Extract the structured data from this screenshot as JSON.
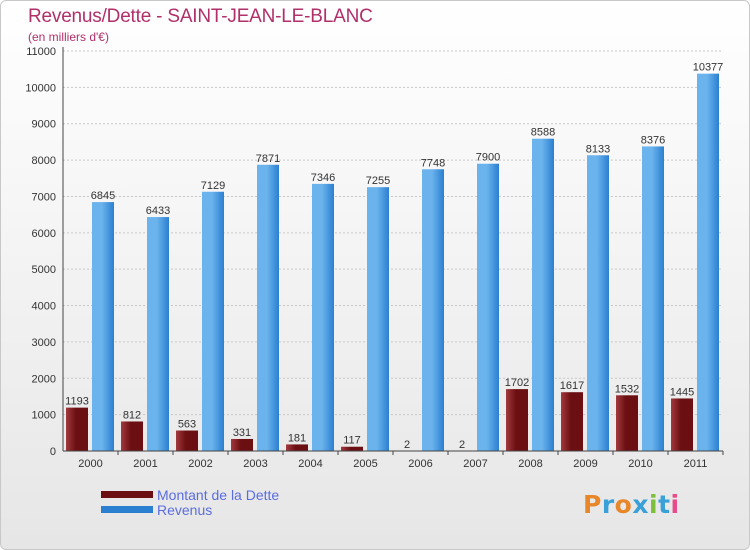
{
  "title": "Revenus/Dette - SAINT-JEAN-LE-BLANC",
  "subtitle": "(en milliers d'€)",
  "logo_text": "Proxiti",
  "colors": {
    "debt": "#6b0f12",
    "debt_light": "#a23a3e",
    "revenue": "#2b7fd1",
    "revenue_light": "#6ab3ec",
    "title": "#b0306a",
    "legend_text": "#5a6de0"
  },
  "legend": {
    "debt_label": "Montant de la Dette",
    "revenue_label": "Revenus"
  },
  "chart_data": {
    "type": "bar",
    "title": "Revenus/Dette - SAINT-JEAN-LE-BLANC",
    "ylabel": "(en milliers d'€)",
    "xlabel": "",
    "ylim": [
      0,
      11000
    ],
    "yticks": [
      0,
      1000,
      2000,
      3000,
      4000,
      5000,
      6000,
      7000,
      8000,
      9000,
      10000,
      11000
    ],
    "categories": [
      "2000",
      "2001",
      "2002",
      "2003",
      "2004",
      "2005",
      "2006",
      "2007",
      "2008",
      "2009",
      "2010",
      "2011"
    ],
    "series": [
      {
        "name": "Montant de la Dette",
        "values": [
          1193,
          812,
          563,
          331,
          181,
          117,
          2,
          2,
          1702,
          1617,
          1532,
          1445
        ]
      },
      {
        "name": "Revenus",
        "values": [
          6845,
          6433,
          7129,
          7871,
          7346,
          7255,
          7748,
          7900,
          8588,
          8133,
          8376,
          10377
        ]
      }
    ],
    "grid": true,
    "legend_position": "bottom-left"
  }
}
